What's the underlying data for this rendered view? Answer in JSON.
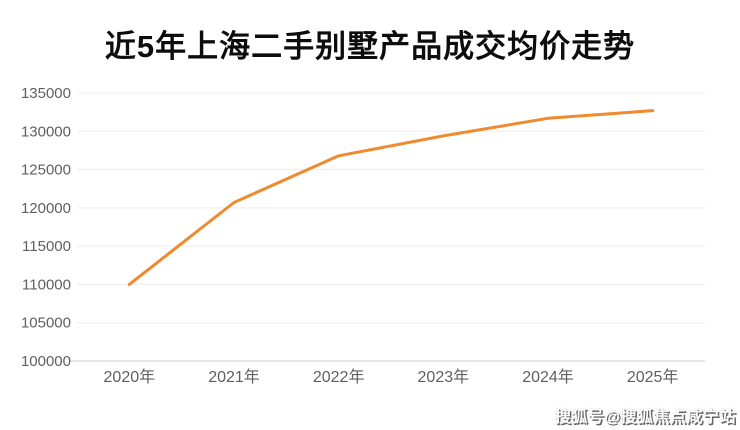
{
  "title": "近5年上海二手别墅产品成交均价走势",
  "watermark": "搜狐号@搜狐焦点咸宁站",
  "colors": {
    "line": "#ef8a2e",
    "grid": "#ededed",
    "axis": "#cccccc",
    "tick_label": "#5f5f5f",
    "title": "#0d0d0d"
  },
  "chart_data": {
    "type": "line",
    "title": "近5年上海二手别墅产品成交均价走势",
    "categories": [
      "2020年",
      "2021年",
      "2022年",
      "2023年",
      "2024年",
      "2025年"
    ],
    "values": [
      110000,
      120700,
      126800,
      129400,
      131700,
      132700
    ],
    "series_name": "成交均价",
    "xlabel": "",
    "ylabel": "",
    "ylim": [
      100000,
      135000
    ],
    "yticks": [
      100000,
      105000,
      110000,
      115000,
      120000,
      125000,
      130000,
      135000
    ],
    "grid": true,
    "legend": "none",
    "line_color": "#ef8a2e"
  }
}
